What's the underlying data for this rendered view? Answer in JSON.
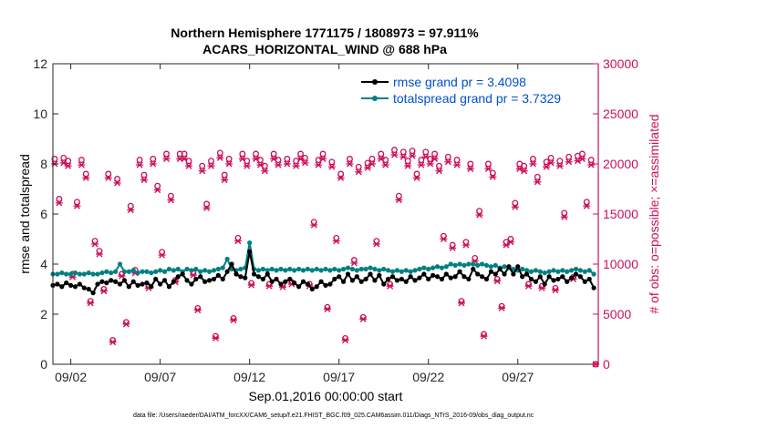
{
  "chart_data": {
    "type": "line",
    "title_line1": "Northern Hemisphere 1771175 / 1808973 = 97.911%",
    "title_line2": "ACARS_HORIZONTAL_WIND @ 688 hPa",
    "xlabel": "Sep.01,2016 00:00:00 start",
    "ylabel_left": "rmse and totalspread",
    "ylabel_right": "# of obs: o=possible; ×=assimilated",
    "xlim": [
      0.5,
      31.0
    ],
    "ylim_left": [
      0,
      12
    ],
    "ylim_right": [
      0,
      30000
    ],
    "x_ticks": [
      1.5,
      6.5,
      11.5,
      16.5,
      21.5,
      26.5
    ],
    "x_tick_labels": [
      "09/02",
      "09/07",
      "09/12",
      "09/17",
      "09/22",
      "09/27"
    ],
    "y_ticks_left": [
      0,
      2,
      4,
      6,
      8,
      10,
      12
    ],
    "y_tick_labels_left": [
      "0",
      "2",
      "4",
      "6",
      "8",
      "10",
      "12"
    ],
    "y_ticks_right": [
      0,
      5000,
      10000,
      15000,
      20000,
      25000,
      30000
    ],
    "y_tick_labels_right": [
      "0",
      "5000",
      "10000",
      "15000",
      "20000",
      "25000",
      "30000"
    ],
    "colors": {
      "rmse": "#000000",
      "spread": "#008080",
      "obs": "#cc0f5a",
      "left_axis": "#000000",
      "right_axis": "#cc0f5a"
    },
    "legend": {
      "rmse_label": "rmse grand pr = 3.4098",
      "spread_label": "totalspread grand pr = 3.7329",
      "position": "top-right"
    },
    "series": [
      {
        "name": "rmse",
        "x": [
          0.5,
          0.75,
          1.0,
          1.25,
          1.5,
          1.75,
          2.0,
          2.25,
          2.5,
          2.75,
          3.0,
          3.25,
          3.5,
          3.75,
          4.0,
          4.25,
          4.5,
          4.75,
          5.0,
          5.25,
          5.5,
          5.75,
          6.0,
          6.25,
          6.5,
          6.75,
          7.0,
          7.25,
          7.5,
          7.75,
          8.0,
          8.25,
          8.5,
          8.75,
          9.0,
          9.25,
          9.5,
          9.75,
          10.0,
          10.25,
          10.5,
          10.75,
          11.0,
          11.25,
          11.5,
          11.75,
          12.0,
          12.25,
          12.5,
          12.75,
          13.0,
          13.25,
          13.5,
          13.75,
          14.0,
          14.25,
          14.5,
          14.75,
          15.0,
          15.25,
          15.5,
          15.75,
          16.0,
          16.25,
          16.5,
          16.75,
          17.0,
          17.25,
          17.5,
          17.75,
          18.0,
          18.25,
          18.5,
          18.75,
          19.0,
          19.25,
          19.5,
          19.75,
          20.0,
          20.25,
          20.5,
          20.75,
          21.0,
          21.25,
          21.5,
          21.75,
          22.0,
          22.25,
          22.5,
          22.75,
          23.0,
          23.25,
          23.5,
          23.75,
          24.0,
          24.25,
          24.5,
          24.75,
          25.0,
          25.25,
          25.5,
          25.75,
          26.0,
          26.25,
          26.5,
          26.75,
          27.0,
          27.25,
          27.5,
          27.75,
          28.0,
          28.25,
          28.5,
          28.75,
          29.0,
          29.25,
          29.5,
          29.75,
          30.0,
          30.25,
          30.5,
          30.75
        ],
        "values": [
          3.15,
          3.2,
          3.1,
          3.25,
          3.15,
          3.1,
          3.2,
          3.05,
          3.0,
          2.85,
          3.2,
          3.3,
          3.25,
          3.35,
          3.3,
          3.2,
          3.35,
          3.1,
          3.3,
          3.15,
          3.2,
          3.25,
          3.1,
          3.4,
          3.2,
          3.35,
          3.1,
          3.3,
          3.5,
          3.6,
          3.35,
          3.2,
          3.4,
          3.5,
          3.3,
          3.35,
          3.4,
          3.55,
          3.4,
          3.7,
          4.0,
          3.6,
          3.5,
          3.45,
          4.5,
          3.6,
          3.5,
          3.4,
          3.6,
          3.3,
          3.4,
          3.2,
          3.3,
          3.4,
          3.25,
          3.1,
          3.3,
          3.2,
          3.0,
          3.1,
          3.3,
          3.15,
          3.2,
          3.4,
          3.5,
          3.3,
          3.6,
          3.35,
          3.5,
          3.3,
          3.4,
          3.6,
          3.35,
          3.55,
          3.2,
          3.4,
          3.5,
          3.35,
          3.4,
          3.3,
          3.5,
          3.35,
          3.45,
          3.6,
          3.4,
          3.55,
          3.5,
          3.4,
          3.6,
          3.45,
          3.5,
          3.7,
          3.5,
          3.4,
          3.8,
          3.6,
          3.5,
          3.4,
          3.7,
          3.6,
          3.8,
          3.6,
          3.9,
          3.6,
          3.9,
          3.5,
          3.6,
          3.4,
          3.3,
          3.5,
          3.2,
          3.5,
          3.35,
          3.4,
          3.5,
          3.3,
          3.45,
          3.6,
          3.5,
          3.3,
          3.4,
          3.05
        ]
      },
      {
        "name": "totalspread",
        "x": [
          0.5,
          0.75,
          1.0,
          1.25,
          1.5,
          1.75,
          2.0,
          2.25,
          2.5,
          2.75,
          3.0,
          3.25,
          3.5,
          3.75,
          4.0,
          4.25,
          4.5,
          4.75,
          5.0,
          5.25,
          5.5,
          5.75,
          6.0,
          6.25,
          6.5,
          6.75,
          7.0,
          7.25,
          7.5,
          7.75,
          8.0,
          8.25,
          8.5,
          8.75,
          9.0,
          9.25,
          9.5,
          9.75,
          10.0,
          10.25,
          10.5,
          10.75,
          11.0,
          11.25,
          11.5,
          11.75,
          12.0,
          12.25,
          12.5,
          12.75,
          13.0,
          13.25,
          13.5,
          13.75,
          14.0,
          14.25,
          14.5,
          14.75,
          15.0,
          15.25,
          15.5,
          15.75,
          16.0,
          16.25,
          16.5,
          16.75,
          17.0,
          17.25,
          17.5,
          17.75,
          18.0,
          18.25,
          18.5,
          18.75,
          19.0,
          19.25,
          19.5,
          19.75,
          20.0,
          20.25,
          20.5,
          20.75,
          21.0,
          21.25,
          21.5,
          21.75,
          22.0,
          22.25,
          22.5,
          22.75,
          23.0,
          23.25,
          23.5,
          23.75,
          24.0,
          24.25,
          24.5,
          24.75,
          25.0,
          25.25,
          25.5,
          25.75,
          26.0,
          26.25,
          26.5,
          26.75,
          27.0,
          27.25,
          27.5,
          27.75,
          28.0,
          28.25,
          28.5,
          28.75,
          29.0,
          29.25,
          29.5,
          29.75,
          30.0,
          30.25,
          30.5,
          30.75
        ],
        "values": [
          3.6,
          3.6,
          3.65,
          3.6,
          3.6,
          3.65,
          3.6,
          3.6,
          3.65,
          3.6,
          3.6,
          3.65,
          3.7,
          3.65,
          3.7,
          4.0,
          3.7,
          3.7,
          3.75,
          3.65,
          3.7,
          3.7,
          3.65,
          3.7,
          3.75,
          3.7,
          3.8,
          3.75,
          3.8,
          3.7,
          3.8,
          3.75,
          3.8,
          3.7,
          3.75,
          3.7,
          3.75,
          3.8,
          3.85,
          4.2,
          3.8,
          3.75,
          3.8,
          3.85,
          4.85,
          3.8,
          3.75,
          3.8,
          3.75,
          3.8,
          3.75,
          3.8,
          3.75,
          3.8,
          3.75,
          3.8,
          3.75,
          3.8,
          3.75,
          3.8,
          3.75,
          3.8,
          3.75,
          3.8,
          3.75,
          3.8,
          3.85,
          3.8,
          3.75,
          3.8,
          3.8,
          3.85,
          3.8,
          3.75,
          3.8,
          3.75,
          3.7,
          3.75,
          3.7,
          3.75,
          3.7,
          3.75,
          3.8,
          3.85,
          3.8,
          3.85,
          3.9,
          3.85,
          3.9,
          4.0,
          3.95,
          4.0,
          3.95,
          4.0,
          4.0,
          3.95,
          4.0,
          3.95,
          3.9,
          3.95,
          3.85,
          3.9,
          3.85,
          3.8,
          3.75,
          3.8,
          3.75,
          3.7,
          3.75,
          3.7,
          3.65,
          3.7,
          3.75,
          3.7,
          3.75,
          3.7,
          3.75,
          3.8,
          3.75,
          3.7,
          3.75,
          3.6
        ]
      },
      {
        "name": "obs_possible",
        "x": [
          0.6,
          0.85,
          1.1,
          1.35,
          1.6,
          1.85,
          2.1,
          2.35,
          2.6,
          2.85,
          3.1,
          3.35,
          3.6,
          3.85,
          4.1,
          4.35,
          4.6,
          4.85,
          5.1,
          5.35,
          5.6,
          5.85,
          6.1,
          6.35,
          6.6,
          6.85,
          7.1,
          7.35,
          7.6,
          7.85,
          8.1,
          8.35,
          8.6,
          8.85,
          9.1,
          9.35,
          9.6,
          9.85,
          10.1,
          10.35,
          10.6,
          10.85,
          11.1,
          11.35,
          11.6,
          11.85,
          12.1,
          12.35,
          12.6,
          12.85,
          13.1,
          13.35,
          13.6,
          13.85,
          14.1,
          14.35,
          14.6,
          14.85,
          15.1,
          15.35,
          15.6,
          15.85,
          16.1,
          16.35,
          16.6,
          16.85,
          17.1,
          17.35,
          17.6,
          17.85,
          18.1,
          18.35,
          18.6,
          18.85,
          19.1,
          19.35,
          19.6,
          19.85,
          20.1,
          20.35,
          20.6,
          20.85,
          21.1,
          21.35,
          21.6,
          21.85,
          22.1,
          22.35,
          22.6,
          22.85,
          23.1,
          23.35,
          23.6,
          23.85,
          24.1,
          24.35,
          24.6,
          24.85,
          25.1,
          25.35,
          25.6,
          25.85,
          26.1,
          26.35,
          26.6,
          26.85,
          27.1,
          27.35,
          27.6,
          27.85,
          28.1,
          28.35,
          28.6,
          28.85,
          29.1,
          29.35,
          29.6,
          29.85,
          30.1,
          30.35,
          30.6,
          30.85
        ],
        "values": [
          20500,
          16500,
          20600,
          20300,
          9000,
          16200,
          20400,
          19000,
          6300,
          12300,
          11300,
          7500,
          19000,
          2400,
          18500,
          9000,
          4200,
          15800,
          9400,
          20400,
          18900,
          7800,
          20500,
          17800,
          11200,
          21000,
          16800,
          8400,
          21000,
          21000,
          20300,
          9100,
          5600,
          19800,
          16000,
          20300,
          2800,
          21100,
          18900,
          20500,
          4600,
          12600,
          21000,
          20300,
          8100,
          21000,
          20400,
          19800,
          8000,
          21000,
          20400,
          7900,
          20500,
          8200,
          20300,
          21000,
          20600,
          8000,
          14200,
          20400,
          21000,
          5700,
          20200,
          12600,
          19000,
          2600,
          20500,
          10400,
          19700,
          4700,
          20100,
          20500,
          12300,
          21000,
          20400,
          8000,
          21400,
          16800,
          21200,
          20300,
          21300,
          19000,
          20400,
          21200,
          20500,
          21000,
          19800,
          12800,
          20700,
          11900,
          20400,
          6300,
          12200,
          20000,
          10600,
          15300,
          3000,
          20000,
          19100,
          8500,
          5800,
          12200,
          12500,
          16100,
          20000,
          19800,
          8000,
          20500,
          18700,
          7800,
          20200,
          20600,
          7600,
          20300,
          15100,
          20700,
          8700,
          20800,
          21000,
          16200,
          20400,
          0
        ]
      },
      {
        "name": "obs_assimilated",
        "x": [
          0.6,
          0.85,
          1.1,
          1.35,
          1.6,
          1.85,
          2.1,
          2.35,
          2.6,
          2.85,
          3.1,
          3.35,
          3.6,
          3.85,
          4.1,
          4.35,
          4.6,
          4.85,
          5.1,
          5.35,
          5.6,
          5.85,
          6.1,
          6.35,
          6.6,
          6.85,
          7.1,
          7.35,
          7.6,
          7.85,
          8.1,
          8.35,
          8.6,
          8.85,
          9.1,
          9.35,
          9.6,
          9.85,
          10.1,
          10.35,
          10.6,
          10.85,
          11.1,
          11.35,
          11.6,
          11.85,
          12.1,
          12.35,
          12.6,
          12.85,
          13.1,
          13.35,
          13.6,
          13.85,
          14.1,
          14.35,
          14.6,
          14.85,
          15.1,
          15.35,
          15.6,
          15.85,
          16.1,
          16.35,
          16.6,
          16.85,
          17.1,
          17.35,
          17.6,
          17.85,
          18.1,
          18.35,
          18.6,
          18.85,
          19.1,
          19.35,
          19.6,
          19.85,
          20.1,
          20.35,
          20.6,
          20.85,
          21.1,
          21.35,
          21.6,
          21.85,
          22.1,
          22.35,
          22.6,
          22.85,
          23.1,
          23.35,
          23.6,
          23.85,
          24.1,
          24.35,
          24.6,
          24.85,
          25.1,
          25.35,
          25.6,
          25.85,
          26.1,
          26.35,
          26.6,
          26.85,
          27.1,
          27.35,
          27.6,
          27.85,
          28.1,
          28.35,
          28.6,
          28.85,
          29.1,
          29.35,
          29.6,
          29.85,
          30.1,
          30.35,
          30.6,
          30.85
        ],
        "values": [
          20000,
          16100,
          20100,
          19800,
          8700,
          15800,
          19900,
          18600,
          6100,
          12000,
          11000,
          7300,
          18600,
          2200,
          18100,
          8800,
          4000,
          15400,
          9100,
          19900,
          18400,
          7600,
          20000,
          17400,
          10900,
          20500,
          16400,
          8200,
          20500,
          20500,
          19800,
          8900,
          5400,
          19300,
          15600,
          19800,
          2600,
          20600,
          18400,
          20000,
          4400,
          12300,
          20500,
          19800,
          7900,
          20500,
          19900,
          19300,
          7800,
          20500,
          19900,
          7700,
          20000,
          8000,
          19800,
          20500,
          20100,
          7800,
          13900,
          19900,
          20500,
          5500,
          19700,
          12300,
          18600,
          2400,
          20000,
          10100,
          19200,
          4500,
          19600,
          20000,
          12000,
          20500,
          19900,
          7800,
          20900,
          16400,
          20700,
          19800,
          20800,
          18600,
          19900,
          20700,
          20000,
          20500,
          19300,
          12500,
          20200,
          11600,
          19900,
          6100,
          11900,
          19500,
          10300,
          14900,
          2800,
          19500,
          18700,
          8300,
          5600,
          11900,
          12200,
          15700,
          19500,
          19300,
          7800,
          20000,
          18200,
          7600,
          19700,
          20100,
          7400,
          19800,
          14700,
          20200,
          8500,
          20300,
          20500,
          15800,
          19900,
          0
        ]
      }
    ],
    "footer": "data file: /Users/raeder/DAI/ATM_forcXX/CAM6_setup/f.e21.FHIST_BGC.f09_025.CAM6assim.011/Diags_NTrS_2016-09/obs_diag_output.nc"
  }
}
